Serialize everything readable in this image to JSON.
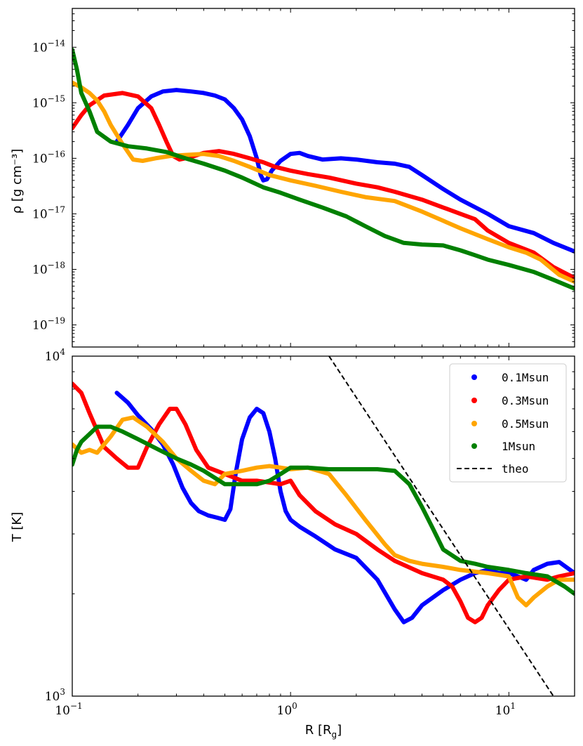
{
  "chart_data": [
    {
      "type": "line",
      "panel": "top",
      "xscale": "log",
      "yscale": "log",
      "xlim": [
        0.1,
        20
      ],
      "ylim": [
        4e-20,
        5e-14
      ],
      "ylabel": "ρ [g cm⁻³]",
      "xlabel": "",
      "y_tick_labels": [
        {
          "value": 1e-14,
          "base": "10",
          "exp": "−14"
        },
        {
          "value": 1e-15,
          "base": "10",
          "exp": "−15"
        },
        {
          "value": 1e-16,
          "base": "10",
          "exp": "−16"
        },
        {
          "value": 1e-17,
          "base": "10",
          "exp": "−17"
        },
        {
          "value": 1e-18,
          "base": "10",
          "exp": "−18"
        },
        {
          "value": 1e-19,
          "base": "10",
          "exp": "−19"
        }
      ],
      "series": [
        {
          "name": "0.1Msun",
          "color": "#0000ff",
          "x": [
            0.16,
            0.18,
            0.2,
            0.23,
            0.26,
            0.3,
            0.35,
            0.4,
            0.45,
            0.5,
            0.55,
            0.6,
            0.65,
            0.7,
            0.73,
            0.75,
            0.78,
            0.82,
            0.9,
            1.0,
            1.1,
            1.2,
            1.4,
            1.7,
            2.0,
            2.5,
            3.0,
            3.5,
            4.0,
            5.0,
            6.0,
            8.0,
            10.0,
            13.0,
            16.0,
            20.0
          ],
          "y": [
            2e-16,
            4e-16,
            8e-16,
            1.3e-15,
            1.6e-15,
            1.7e-15,
            1.6e-15,
            1.5e-15,
            1.35e-15,
            1.15e-15,
            8e-16,
            5e-16,
            2.5e-16,
            1e-16,
            5e-17,
            4e-17,
            4.2e-17,
            6e-17,
            9e-17,
            1.2e-16,
            1.25e-16,
            1.1e-16,
            9.5e-17,
            1e-16,
            9.5e-17,
            8.5e-17,
            8e-17,
            7e-17,
            5e-17,
            2.8e-17,
            1.8e-17,
            1e-17,
            6e-18,
            4.5e-18,
            3e-18,
            2.1e-18
          ]
        },
        {
          "name": "0.3Msun",
          "color": "#ff0000",
          "x": [
            0.1,
            0.11,
            0.12,
            0.14,
            0.17,
            0.2,
            0.23,
            0.25,
            0.27,
            0.29,
            0.31,
            0.35,
            0.4,
            0.47,
            0.55,
            0.65,
            0.75,
            0.85,
            1.0,
            1.2,
            1.5,
            2.0,
            2.5,
            3.0,
            4.0,
            5.0,
            6.0,
            7.0,
            8.0,
            10.0,
            13.0,
            16.0,
            20.0
          ],
          "y": [
            3.5e-16,
            6e-16,
            9e-16,
            1.35e-15,
            1.5e-15,
            1.3e-15,
            8e-16,
            4e-16,
            2e-16,
            1.1e-16,
            9.5e-17,
            1.05e-16,
            1.25e-16,
            1.35e-16,
            1.2e-16,
            1e-16,
            8.5e-17,
            7e-17,
            6e-17,
            5.2e-17,
            4.5e-17,
            3.5e-17,
            3e-17,
            2.5e-17,
            1.8e-17,
            1.3e-17,
            1e-17,
            8e-18,
            5e-18,
            3e-18,
            2e-18,
            1.1e-18,
            7e-19
          ]
        },
        {
          "name": "0.5Msun",
          "color": "#ffa500",
          "x": [
            0.1,
            0.11,
            0.12,
            0.13,
            0.14,
            0.15,
            0.17,
            0.19,
            0.21,
            0.24,
            0.28,
            0.33,
            0.4,
            0.47,
            0.55,
            0.65,
            0.8,
            1.0,
            1.3,
            1.7,
            2.2,
            3.0,
            4.0,
            5.0,
            6.0,
            8.0,
            10.0,
            12.0,
            14.0,
            17.0,
            20.0
          ],
          "y": [
            2.3e-15,
            1.9e-15,
            1.5e-15,
            1.1e-15,
            7e-16,
            4e-16,
            1.8e-16,
            9.5e-17,
            9e-17,
            1e-16,
            1.1e-16,
            1.15e-16,
            1.2e-16,
            1.1e-16,
            9e-17,
            7e-17,
            5e-17,
            4e-17,
            3.2e-17,
            2.5e-17,
            2e-17,
            1.7e-17,
            1.1e-17,
            7.5e-18,
            5.5e-18,
            3.5e-18,
            2.5e-18,
            2e-18,
            1.5e-18,
            8e-19,
            6e-19
          ]
        },
        {
          "name": "1Msun",
          "color": "#008000",
          "x": [
            0.1,
            0.105,
            0.11,
            0.12,
            0.13,
            0.15,
            0.18,
            0.22,
            0.27,
            0.33,
            0.4,
            0.5,
            0.6,
            0.75,
            0.9,
            1.1,
            1.4,
            1.8,
            2.2,
            2.7,
            3.3,
            4.0,
            5.0,
            6.0,
            7.0,
            8.0,
            10.0,
            13.0,
            16.0,
            20.0
          ],
          "y": [
            9e-15,
            4e-15,
            1.5e-15,
            7e-16,
            3e-16,
            2e-16,
            1.65e-16,
            1.5e-16,
            1.3e-16,
            1e-16,
            8e-17,
            6e-17,
            4.5e-17,
            3e-17,
            2.4e-17,
            1.8e-17,
            1.3e-17,
            9e-18,
            6e-18,
            4e-18,
            3e-18,
            2.8e-18,
            2.7e-18,
            2.2e-18,
            1.8e-18,
            1.5e-18,
            1.2e-18,
            9e-19,
            6.5e-19,
            4.5e-19
          ]
        }
      ]
    },
    {
      "type": "line",
      "panel": "bottom",
      "xscale": "log",
      "yscale": "log",
      "xlim": [
        0.1,
        20
      ],
      "ylim": [
        1000,
        10000
      ],
      "ylabel": "T [K]",
      "xlabel_main": "R [R",
      "xlabel_sub": "g",
      "xlabel_end": "]",
      "x_tick_labels": [
        {
          "value": 0.1,
          "base": "10",
          "exp": "−1"
        },
        {
          "value": 1,
          "base": "10",
          "exp": "0"
        },
        {
          "value": 10,
          "base": "10",
          "exp": "1"
        }
      ],
      "y_tick_labels": [
        {
          "value": 10000,
          "base": "10",
          "exp": "4"
        },
        {
          "value": 1000,
          "base": "10",
          "exp": "3"
        }
      ],
      "legend_position": "top-right",
      "series": [
        {
          "name": "0.1Msun",
          "color": "#0000ff",
          "x": [
            0.16,
            0.18,
            0.2,
            0.23,
            0.26,
            0.29,
            0.32,
            0.35,
            0.38,
            0.42,
            0.46,
            0.5,
            0.53,
            0.56,
            0.6,
            0.65,
            0.7,
            0.75,
            0.8,
            0.85,
            0.9,
            0.95,
            1.0,
            1.1,
            1.3,
            1.6,
            2.0,
            2.5,
            3.0,
            3.3,
            3.6,
            4.0,
            5.0,
            6.0,
            7.0,
            8.0,
            9.0,
            10.0,
            11.0,
            12.0,
            13.0,
            15.0,
            17.0,
            20.0
          ],
          "y": [
            7800,
            7300,
            6700,
            6100,
            5500,
            4800,
            4100,
            3700,
            3500,
            3400,
            3350,
            3300,
            3550,
            4500,
            5700,
            6600,
            7000,
            6800,
            6000,
            5000,
            4000,
            3500,
            3300,
            3150,
            2950,
            2700,
            2550,
            2200,
            1800,
            1650,
            1700,
            1850,
            2050,
            2200,
            2300,
            2350,
            2300,
            2300,
            2250,
            2200,
            2350,
            2450,
            2480,
            2300
          ]
        },
        {
          "name": "0.3Msun",
          "color": "#ff0000",
          "x": [
            0.1,
            0.11,
            0.12,
            0.14,
            0.16,
            0.18,
            0.2,
            0.22,
            0.25,
            0.28,
            0.3,
            0.33,
            0.37,
            0.42,
            0.5,
            0.6,
            0.7,
            0.8,
            0.9,
            1.0,
            1.1,
            1.3,
            1.6,
            2.0,
            2.5,
            3.0,
            4.0,
            5.0,
            5.5,
            6.0,
            6.5,
            7.0,
            7.5,
            8.0,
            9.0,
            10.0,
            12.0,
            15.0,
            17.0,
            20.0
          ],
          "y": [
            8300,
            7800,
            6800,
            5400,
            5000,
            4700,
            4700,
            5400,
            6300,
            7000,
            7000,
            6300,
            5300,
            4700,
            4500,
            4300,
            4300,
            4250,
            4200,
            4300,
            3900,
            3500,
            3200,
            3000,
            2700,
            2500,
            2300,
            2200,
            2100,
            1900,
            1700,
            1650,
            1700,
            1850,
            2050,
            2200,
            2250,
            2200,
            2250,
            2300
          ]
        },
        {
          "name": "0.5Msun",
          "color": "#ffa500",
          "x": [
            0.1,
            0.11,
            0.12,
            0.13,
            0.15,
            0.17,
            0.19,
            0.22,
            0.26,
            0.3,
            0.35,
            0.4,
            0.45,
            0.5,
            0.6,
            0.7,
            0.8,
            0.9,
            1.0,
            1.2,
            1.5,
            1.8,
            2.2,
            2.7,
            3.0,
            3.5,
            4.0,
            5.0,
            6.0,
            8.0,
            10.0,
            11.0,
            12.0,
            13.0,
            15.0,
            17.0,
            20.0
          ],
          "y": [
            5500,
            5200,
            5300,
            5200,
            5800,
            6500,
            6600,
            6200,
            5600,
            5000,
            4600,
            4300,
            4200,
            4500,
            4600,
            4700,
            4750,
            4700,
            4650,
            4700,
            4500,
            3900,
            3300,
            2800,
            2600,
            2500,
            2450,
            2400,
            2350,
            2300,
            2250,
            1950,
            1850,
            1950,
            2100,
            2200,
            2200
          ]
        },
        {
          "name": "1Msun",
          "color": "#008000",
          "x": [
            0.1,
            0.105,
            0.11,
            0.12,
            0.13,
            0.15,
            0.17,
            0.2,
            0.25,
            0.3,
            0.35,
            0.4,
            0.5,
            0.6,
            0.7,
            0.8,
            0.9,
            1.0,
            1.2,
            1.5,
            2.0,
            2.5,
            3.0,
            3.5,
            4.0,
            4.5,
            5.0,
            6.0,
            7.0,
            8.0,
            10.0,
            12.0,
            15.0,
            18.0,
            20.0
          ],
          "y": [
            4800,
            5300,
            5600,
            5900,
            6200,
            6200,
            6000,
            5700,
            5300,
            5000,
            4800,
            4600,
            4200,
            4200,
            4200,
            4300,
            4500,
            4700,
            4700,
            4650,
            4650,
            4650,
            4600,
            4200,
            3600,
            3100,
            2700,
            2500,
            2450,
            2400,
            2350,
            2300,
            2250,
            2100,
            2000
          ]
        }
      ],
      "reference_line": {
        "name": "theo",
        "color": "#000000",
        "style": "dashed",
        "x": [
          1.5,
          16.0
        ],
        "y": [
          10000,
          1000
        ]
      }
    }
  ]
}
